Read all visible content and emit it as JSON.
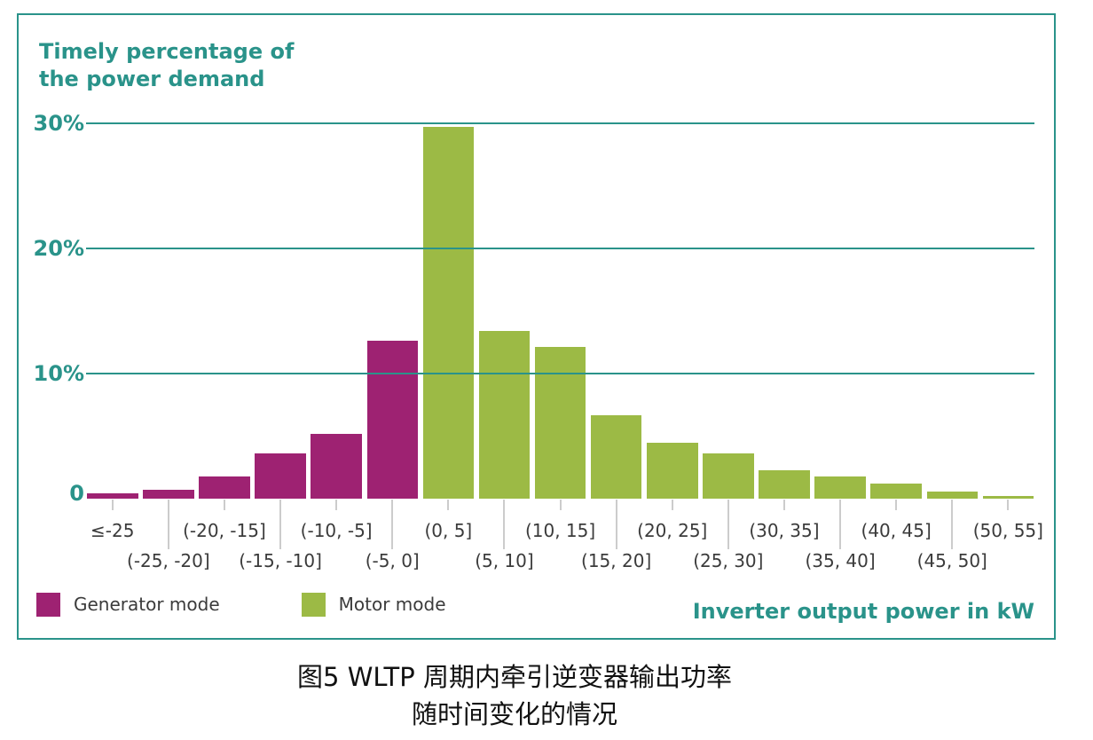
{
  "figure": {
    "chart_title_line1": "Timely percentage of",
    "chart_title_line2": "the power demand",
    "x_axis_title": "Inverter output power in kW",
    "colors": {
      "teal": "#2a938a",
      "generator_magenta": "#9e2272",
      "motor_green": "#9cba45",
      "tick_gray": "#cccccc",
      "label_dark": "#3b3b3b"
    },
    "legend": {
      "generator_label": "Generator mode",
      "motor_label": "Motor mode"
    }
  },
  "chart_data": {
    "type": "bar",
    "title": "Timely percentage of the power demand",
    "xlabel": "Inverter output power in kW",
    "ylabel": "Timely percentage of the power demand",
    "ylim": [
      0,
      32
    ],
    "grid": "horizontal teal gridlines at 10%, 20%, 30%, drawn over bars",
    "legend_position": "bottom-left",
    "yticks": [
      {
        "label": "30%",
        "value": 30
      },
      {
        "label": "20%",
        "value": 20
      },
      {
        "label": "10%",
        "value": 10
      },
      {
        "label": "0",
        "value": 0
      }
    ],
    "categories": [
      "≤-25",
      "(-25, -20]",
      "(-20, -15]",
      "(-15, -10]",
      "(-10, -5]",
      "(-5, 0]",
      "(0, 5]",
      "(5, 10]",
      "(10, 15]",
      "(15, 20]",
      "(20, 25]",
      "(25, 30]",
      "(30, 35]",
      "(35, 40]",
      "(40, 45]",
      "(45, 50]",
      "(50, 55]"
    ],
    "series": [
      {
        "name": "Generator mode",
        "color": "#9e2272",
        "values": [
          0.4,
          0.7,
          1.8,
          3.6,
          5.2,
          12.6,
          null,
          null,
          null,
          null,
          null,
          null,
          null,
          null,
          null,
          null,
          null
        ]
      },
      {
        "name": "Motor mode",
        "color": "#9cba45",
        "values": [
          null,
          null,
          null,
          null,
          null,
          null,
          29.7,
          13.4,
          12.1,
          6.7,
          4.5,
          3.6,
          2.3,
          1.8,
          1.2,
          0.6,
          0.2
        ]
      }
    ]
  },
  "caption": {
    "line1": "图5 WLTP 周期内牵引逆变器输出功率",
    "line2": "随时间变化的情况"
  }
}
